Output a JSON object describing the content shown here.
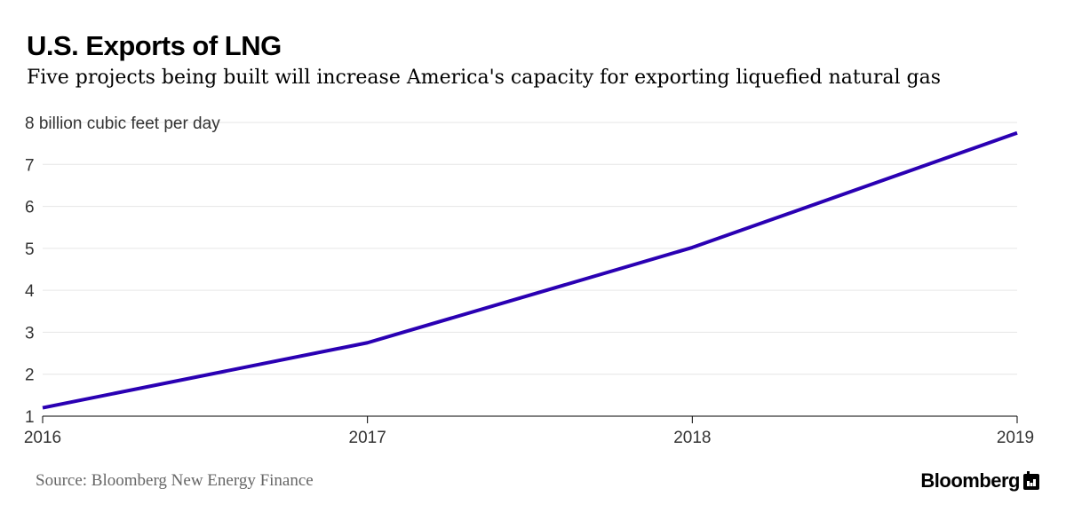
{
  "header": {
    "title": "U.S. Exports of LNG",
    "subtitle": "Five projects being built will increase America's capacity for exporting liquefied natural gas"
  },
  "footer": {
    "source": "Source: Bloomberg New Energy Finance",
    "brand": "Bloomberg",
    "brand_icon": "bloomberg-terminal-icon"
  },
  "colors": {
    "line": "#2a00b3",
    "grid": "#e6e6e6",
    "axis": "#000000",
    "tick_text": "#333333"
  },
  "chart_data": {
    "type": "line",
    "title": "U.S. Exports of LNG",
    "ylabel": "8 billion cubic feet per day",
    "xlabel": "",
    "x": [
      2016,
      2017,
      2018,
      2019
    ],
    "xlim": [
      2016,
      2019
    ],
    "ylim": [
      1,
      8
    ],
    "yticks": [
      1,
      2,
      3,
      4,
      5,
      6,
      7,
      8
    ],
    "ytick_labels": [
      "1",
      "2",
      "3",
      "4",
      "5",
      "6",
      "7",
      "8"
    ],
    "xtick_labels": [
      "2016",
      "2017",
      "2018",
      "2019"
    ],
    "grid": true,
    "series": [
      {
        "values": [
          1.2,
          2.75,
          5.02,
          7.75
        ]
      }
    ]
  }
}
